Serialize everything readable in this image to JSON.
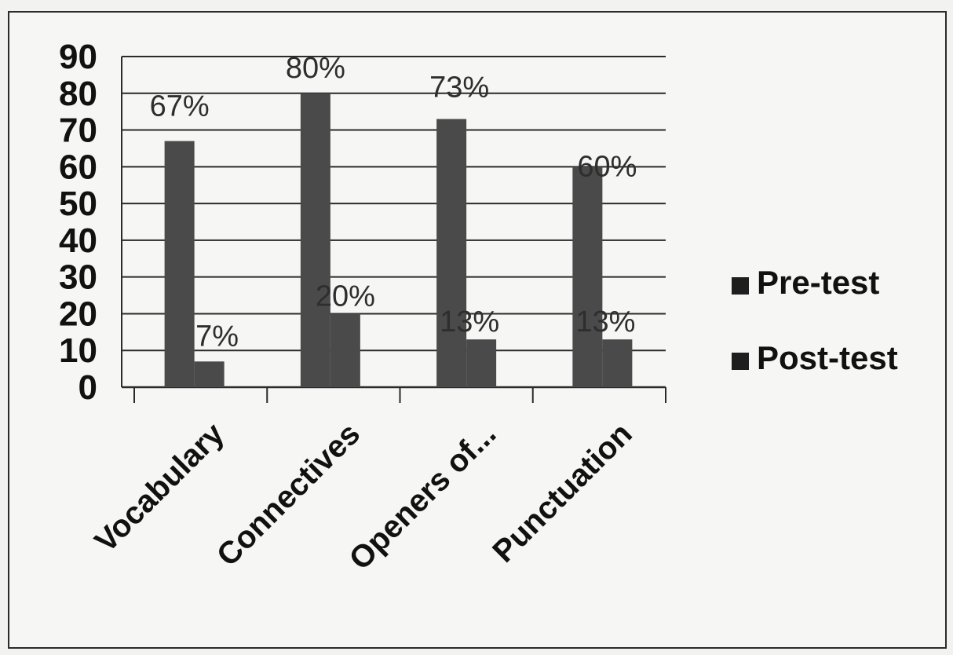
{
  "chart_data": {
    "type": "bar",
    "categories": [
      "Vocabulary",
      "Connectives",
      "Openers of...",
      "Punctuation"
    ],
    "series": [
      {
        "name": "Pre-test",
        "values": [
          67,
          80,
          73,
          60
        ],
        "labels": [
          "67%",
          "80%",
          "73%",
          "60%"
        ]
      },
      {
        "name": "Post-test",
        "values": [
          7,
          20,
          13,
          13
        ],
        "labels": [
          "7%",
          "20%",
          "13%",
          "13%"
        ]
      }
    ],
    "title": "",
    "xlabel": "",
    "ylabel": "",
    "ylim": [
      0,
      90
    ],
    "yticks": [
      0,
      10,
      20,
      30,
      40,
      50,
      60,
      70,
      80,
      90
    ],
    "grid": true,
    "legend_position": "right",
    "colors": {
      "bar": "#4a4a4a",
      "grid": "#2a2a2a",
      "axis": "#2a2a2a"
    }
  }
}
